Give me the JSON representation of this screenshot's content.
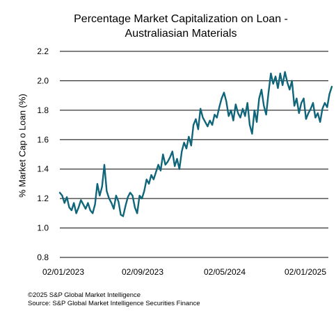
{
  "chart_data": {
    "type": "line",
    "title_line1": "Percentage Market Capitalization on Loan -",
    "title_line2": "Australiasian Materials",
    "xlabel": "",
    "ylabel": "% Market Cap o Loan (%)",
    "ylim": [
      0.8,
      2.2
    ],
    "yticks": [
      "0.8",
      "1.0",
      "1.2",
      "1.4",
      "1.6",
      "1.8",
      "2.0",
      "2.2"
    ],
    "xticks": [
      "02/01/2023",
      "02/09/2023",
      "02/05/2024",
      "02/01/2025"
    ],
    "grid": "horizontal",
    "color": "#0f6579",
    "series": [
      {
        "x": [
          "2023-01-02",
          "2023-01-09",
          "2023-01-16",
          "2023-01-23",
          "2023-01-30",
          "2023-02-06",
          "2023-02-13",
          "2023-02-20",
          "2023-02-27",
          "2023-03-06",
          "2023-03-13",
          "2023-03-20",
          "2023-03-27",
          "2023-04-03",
          "2023-04-10",
          "2023-04-17",
          "2023-04-24",
          "2023-05-01",
          "2023-05-08",
          "2023-05-15",
          "2023-05-22",
          "2023-05-29",
          "2023-06-05",
          "2023-06-12",
          "2023-06-19",
          "2023-06-26",
          "2023-07-03",
          "2023-07-10",
          "2023-07-17",
          "2023-07-24",
          "2023-07-31",
          "2023-08-07",
          "2023-08-14",
          "2023-08-21",
          "2023-08-28",
          "2023-09-04",
          "2023-09-11",
          "2023-09-18",
          "2023-09-25",
          "2023-10-02",
          "2023-10-09",
          "2023-10-16",
          "2023-10-23",
          "2023-10-30",
          "2023-11-06",
          "2023-11-13",
          "2023-11-20",
          "2023-11-27",
          "2023-12-04",
          "2023-12-11",
          "2023-12-18",
          "2023-12-25",
          "2024-01-01",
          "2024-01-08",
          "2024-01-15",
          "2024-01-22",
          "2024-01-29",
          "2024-02-05",
          "2024-02-12",
          "2024-02-19",
          "2024-02-26",
          "2024-03-04",
          "2024-03-11",
          "2024-03-18",
          "2024-03-25",
          "2024-04-01",
          "2024-04-08",
          "2024-04-15",
          "2024-04-22",
          "2024-04-29",
          "2024-05-06",
          "2024-05-13",
          "2024-05-20",
          "2024-05-27",
          "2024-06-03",
          "2024-06-10",
          "2024-06-17",
          "2024-06-24",
          "2024-07-01",
          "2024-07-08",
          "2024-07-15",
          "2024-07-22",
          "2024-07-29",
          "2024-08-05",
          "2024-08-12",
          "2024-08-19",
          "2024-08-26",
          "2024-09-02",
          "2024-09-09",
          "2024-09-16",
          "2024-09-23",
          "2024-09-30",
          "2024-10-07",
          "2024-10-14",
          "2024-10-21",
          "2024-10-28",
          "2024-11-04",
          "2024-11-11",
          "2024-11-18",
          "2024-11-25",
          "2024-12-02",
          "2024-12-09",
          "2024-12-16",
          "2024-12-23",
          "2024-12-30",
          "2025-01-06",
          "2025-01-13",
          "2025-01-20",
          "2025-01-27",
          "2025-02-03",
          "2025-02-10",
          "2025-02-17",
          "2025-02-24",
          "2025-03-03",
          "2025-03-10",
          "2025-03-17",
          "2025-03-24"
        ],
        "y": [
          1.24,
          1.22,
          1.17,
          1.21,
          1.14,
          1.12,
          1.17,
          1.1,
          1.14,
          1.19,
          1.16,
          1.13,
          1.17,
          1.12,
          1.1,
          1.16,
          1.3,
          1.22,
          1.28,
          1.43,
          1.25,
          1.2,
          1.17,
          1.13,
          1.22,
          1.18,
          1.09,
          1.08,
          1.15,
          1.21,
          1.24,
          1.22,
          1.14,
          1.1,
          1.22,
          1.2,
          1.25,
          1.33,
          1.3,
          1.36,
          1.33,
          1.38,
          1.43,
          1.39,
          1.5,
          1.43,
          1.45,
          1.48,
          1.52,
          1.42,
          1.47,
          1.4,
          1.52,
          1.58,
          1.54,
          1.62,
          1.56,
          1.7,
          1.74,
          1.67,
          1.81,
          1.75,
          1.72,
          1.69,
          1.73,
          1.7,
          1.77,
          1.75,
          1.82,
          1.88,
          1.92,
          1.86,
          1.76,
          1.8,
          1.73,
          1.84,
          1.78,
          1.75,
          1.81,
          1.76,
          1.85,
          1.7,
          1.64,
          1.8,
          1.72,
          1.88,
          1.94,
          1.83,
          1.77,
          1.92,
          2.05,
          1.98,
          2.03,
          1.95,
          2.05,
          1.97,
          2.06,
          1.99,
          1.94,
          2.0,
          1.83,
          1.88,
          1.78,
          1.85,
          1.88,
          1.74,
          1.78,
          1.81,
          1.85,
          1.75,
          1.78,
          1.72,
          1.81,
          1.85,
          1.82,
          1.91,
          1.96
        ]
      }
    ]
  },
  "footer": {
    "copyright": "©2025 S&P Global Market Intelligence",
    "source": "Source: S&P Global Market Intelligence Securities Finance"
  }
}
